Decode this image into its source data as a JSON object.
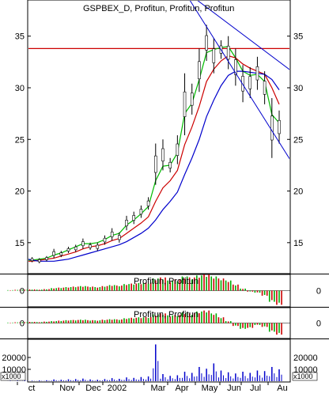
{
  "chart_data": [
    {
      "id": "price",
      "type": "line",
      "title": "GSPBEX_D, Profitun, Profitun, Profitun",
      "y_ticks": [
        15,
        20,
        25,
        30,
        35
      ],
      "ylim": [
        12.0,
        38.5
      ],
      "x_labels": [
        "ct",
        "Nov",
        "Dec",
        "2002",
        "Mar",
        "Apr",
        "May",
        "Jun",
        "Jul",
        "Au"
      ],
      "reference_line": {
        "value": 33.8,
        "color": "#cc0000"
      },
      "candles": [
        {
          "x": 0,
          "high": 13.6,
          "low": 13.0
        },
        {
          "x": 1,
          "high": 13.5,
          "low": 13.0
        },
        {
          "x": 2,
          "high": 13.5,
          "low": 13.1
        },
        {
          "x": 3,
          "high": 13.6,
          "low": 13.1
        },
        {
          "x": 4,
          "high": 13.5,
          "low": 13.0
        },
        {
          "x": 5,
          "high": 13.7,
          "low": 13.2
        },
        {
          "x": 6,
          "high": 14.4,
          "low": 13.5
        },
        {
          "x": 7,
          "high": 14.2,
          "low": 13.6
        },
        {
          "x": 8,
          "high": 14.6,
          "low": 14.0
        },
        {
          "x": 9,
          "high": 14.8,
          "low": 14.1
        },
        {
          "x": 10,
          "high": 15.4,
          "low": 14.4
        },
        {
          "x": 11,
          "high": 15.0,
          "low": 14.3
        },
        {
          "x": 12,
          "high": 15.0,
          "low": 14.2
        },
        {
          "x": 13,
          "high": 15.7,
          "low": 14.8
        },
        {
          "x": 14,
          "high": 16.4,
          "low": 15.2
        },
        {
          "x": 15,
          "high": 16.0,
          "low": 15.0
        },
        {
          "x": 16,
          "high": 17.6,
          "low": 16.2
        },
        {
          "x": 17,
          "high": 18.0,
          "low": 16.8
        },
        {
          "x": 18,
          "high": 18.6,
          "low": 17.4
        },
        {
          "x": 19,
          "high": 19.4,
          "low": 18.2
        },
        {
          "x": 20,
          "high": 24.6,
          "low": 20.6
        },
        {
          "x": 21,
          "high": 25.0,
          "low": 22.0
        },
        {
          "x": 22,
          "high": 23.2,
          "low": 21.8
        },
        {
          "x": 23,
          "high": 25.4,
          "low": 22.6
        },
        {
          "x": 24,
          "high": 31.4,
          "low": 25.4
        },
        {
          "x": 25,
          "high": 30.4,
          "low": 27.4
        },
        {
          "x": 26,
          "high": 33.8,
          "low": 29.6
        },
        {
          "x": 27,
          "high": 36.1,
          "low": 32.6
        },
        {
          "x": 28,
          "high": 34.8,
          "low": 31.4
        },
        {
          "x": 29,
          "high": 34.6,
          "low": 32.8
        },
        {
          "x": 30,
          "high": 35.0,
          "low": 31.8
        },
        {
          "x": 31,
          "high": 33.8,
          "low": 30.2
        },
        {
          "x": 32,
          "high": 32.2,
          "low": 28.6
        },
        {
          "x": 33,
          "high": 32.0,
          "low": 29.0
        },
        {
          "x": 34,
          "high": 33.0,
          "low": 29.8
        },
        {
          "x": 35,
          "high": 31.6,
          "low": 28.4
        },
        {
          "x": 36,
          "high": 29.0,
          "low": 23.2
        },
        {
          "x": 37,
          "high": 27.8,
          "low": 24.6
        }
      ],
      "series": [
        {
          "color": "#00bb00",
          "values": [
            13.2,
            13.2,
            13.3,
            13.3,
            13.4,
            13.5,
            13.8,
            14.0,
            14.3,
            14.6,
            14.9,
            14.9,
            15.0,
            15.3,
            15.7,
            15.9,
            16.7,
            17.2,
            17.8,
            18.5,
            21.0,
            22.4,
            22.5,
            23.7,
            27.5,
            28.5,
            30.8,
            33.4,
            33.7,
            33.9,
            34.0,
            32.9,
            31.6,
            31.2,
            31.3,
            30.6,
            27.4,
            26.6
          ]
        },
        {
          "color": "#cc0000",
          "values": [
            13.1,
            13.1,
            13.2,
            13.2,
            13.3,
            13.4,
            13.5,
            13.7,
            13.9,
            14.1,
            14.4,
            14.6,
            14.7,
            14.9,
            15.2,
            15.4,
            15.9,
            16.4,
            16.9,
            17.5,
            19.0,
            20.3,
            21.0,
            22.0,
            24.5,
            26.2,
            28.2,
            30.6,
            31.8,
            32.6,
            33.1,
            32.9,
            32.3,
            31.9,
            31.6,
            31.3,
            30.0,
            28.4
          ]
        },
        {
          "color": "#0000cc",
          "values": [
            14.1,
            13.8,
            13.5,
            13.3,
            13.2,
            13.2,
            13.2,
            13.3,
            13.4,
            13.6,
            13.8,
            14.0,
            14.2,
            14.4,
            14.6,
            14.8,
            15.1,
            15.5,
            15.9,
            16.4,
            17.2,
            18.2,
            19.0,
            19.9,
            21.6,
            23.2,
            25.0,
            27.2,
            28.8,
            30.2,
            31.2,
            31.6,
            31.6,
            31.5,
            31.4,
            31.3,
            30.8,
            29.8
          ]
        }
      ],
      "trendlines": [
        {
          "color": "#0000cc",
          "from": [
            25.5,
            38.6
          ],
          "to": [
            39.5,
            31.2
          ]
        },
        {
          "color": "#0000cc",
          "from": [
            24.6,
            38.6
          ],
          "to": [
            40.5,
            20.8
          ]
        }
      ]
    },
    {
      "id": "oscillator-1",
      "type": "bar",
      "title": "Profitun, Profitun",
      "y_ticks": [
        0
      ],
      "ylim": [
        -1.6,
        1.6
      ],
      "values": [
        0.05,
        0.08,
        0.1,
        0.12,
        0.1,
        0.15,
        0.25,
        0.3,
        0.35,
        0.4,
        0.45,
        0.4,
        0.35,
        0.45,
        0.55,
        0.5,
        0.65,
        0.7,
        0.75,
        0.8,
        1.2,
        1.3,
        1.0,
        1.1,
        1.4,
        1.3,
        1.5,
        1.6,
        1.4,
        1.2,
        1.0,
        0.6,
        0.2,
        -0.1,
        -0.2,
        -0.5,
        -1.1,
        -1.4
      ]
    },
    {
      "id": "oscillator-2",
      "type": "bar",
      "title": "Profitun, Profitun",
      "y_ticks": [
        0
      ],
      "ylim": [
        -1.6,
        1.6
      ],
      "values": [
        0.05,
        0.08,
        0.1,
        0.12,
        0.1,
        0.15,
        0.2,
        0.25,
        0.3,
        0.32,
        0.35,
        0.3,
        0.28,
        0.35,
        0.4,
        0.38,
        0.5,
        0.55,
        0.6,
        0.62,
        0.9,
        1.0,
        0.8,
        0.85,
        1.1,
        1.0,
        1.2,
        1.3,
        1.0,
        0.6,
        0.2,
        -0.3,
        -0.6,
        -0.5,
        -0.2,
        -0.4,
        -0.9,
        -1.2
      ]
    },
    {
      "id": "volume",
      "type": "bar",
      "y_ticks": [
        10000,
        20000
      ],
      "tick_labels": [
        "10000",
        "20000"
      ],
      "unit_label": "x1000",
      "ylim": [
        0,
        34000
      ],
      "values": [
        200,
        300,
        500,
        400,
        600,
        800,
        1500,
        1200,
        1600,
        1800,
        2200,
        1500,
        1200,
        1800,
        2600,
        2000,
        3200,
        2800,
        3500,
        4000,
        31000,
        6000,
        4500,
        5000,
        8000,
        7000,
        12000,
        10500,
        15000,
        9000,
        7500,
        6500,
        8000,
        7000,
        9000,
        8500,
        12000,
        10000
      ]
    }
  ]
}
